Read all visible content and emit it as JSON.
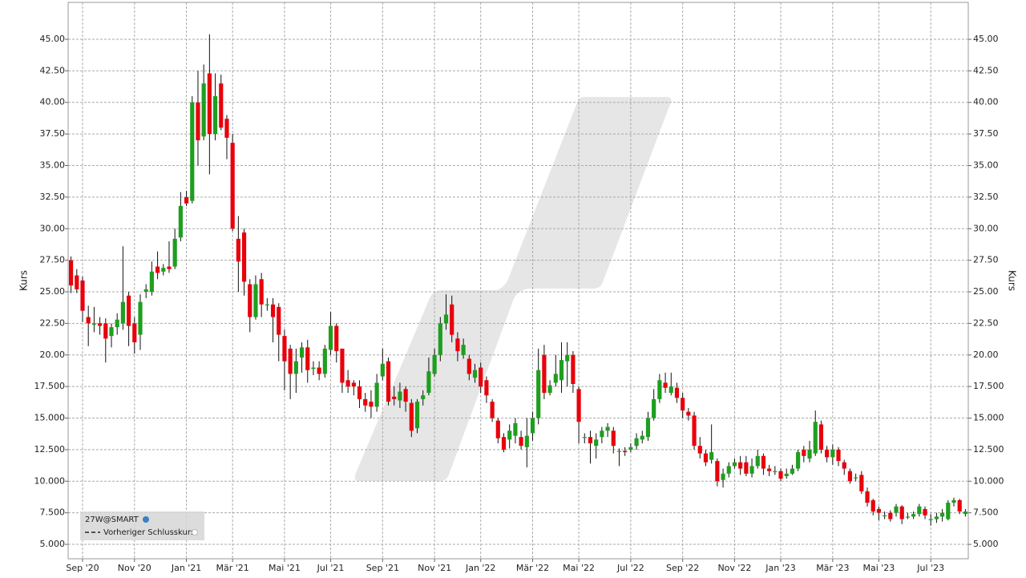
{
  "chart_data": {
    "type": "candlestick",
    "y_label": "Kurs",
    "legend": {
      "symbol": "27W@SMART",
      "previous_close": "Vorheriger Schlusskurs"
    },
    "up_color": "#1f9e1f",
    "down_color": "#e8000b",
    "grid": true,
    "ylim": [
      3.86,
      47.92
    ],
    "yticks": [
      {
        "value": 5,
        "label": "5.000"
      },
      {
        "value": 7.5,
        "label": "7.500"
      },
      {
        "value": 10,
        "label": "10.000"
      },
      {
        "value": 12.5,
        "label": "12.500"
      },
      {
        "value": 15,
        "label": "15.000"
      },
      {
        "value": 17.5,
        "label": "17.500"
      },
      {
        "value": 20,
        "label": "20.00"
      },
      {
        "value": 22.5,
        "label": "22.50"
      },
      {
        "value": 25,
        "label": "25.00"
      },
      {
        "value": 27.5,
        "label": "27.50"
      },
      {
        "value": 30,
        "label": "30.00"
      },
      {
        "value": 32.5,
        "label": "32.50"
      },
      {
        "value": 35,
        "label": "35.00"
      },
      {
        "value": 37.5,
        "label": "37.50"
      },
      {
        "value": 40,
        "label": "40.00"
      },
      {
        "value": 42.5,
        "label": "42.50"
      },
      {
        "value": 45,
        "label": "45.00"
      }
    ],
    "categories": [
      null,
      null,
      "Sep '20",
      null,
      null,
      null,
      null,
      null,
      null,
      null,
      null,
      "Nov '20",
      null,
      null,
      null,
      null,
      null,
      null,
      null,
      null,
      "Jan '21",
      null,
      null,
      null,
      null,
      null,
      null,
      null,
      "Mär '21",
      null,
      null,
      null,
      null,
      null,
      null,
      null,
      null,
      "Mai '21",
      null,
      null,
      null,
      null,
      null,
      null,
      null,
      "Jul '21",
      null,
      null,
      null,
      null,
      null,
      null,
      null,
      null,
      "Sep '21",
      null,
      null,
      null,
      null,
      null,
      null,
      null,
      null,
      "Nov '21",
      null,
      null,
      null,
      null,
      null,
      null,
      null,
      "Jan '22",
      null,
      null,
      null,
      null,
      null,
      null,
      null,
      null,
      "Mär '22",
      null,
      null,
      null,
      null,
      null,
      null,
      null,
      "Mai '22",
      null,
      null,
      null,
      null,
      null,
      null,
      null,
      null,
      "Jul '22",
      null,
      null,
      null,
      null,
      null,
      null,
      null,
      null,
      "Sep '22",
      null,
      null,
      null,
      null,
      null,
      null,
      null,
      null,
      "Nov '22",
      null,
      null,
      null,
      null,
      null,
      null,
      null,
      "Jan '23",
      null,
      null,
      null,
      null,
      null,
      null,
      null,
      null,
      "Mär '23",
      null,
      null,
      null,
      null,
      null,
      null,
      null,
      "Mai '23",
      null,
      null,
      null,
      null,
      null,
      null,
      null,
      null,
      "Jul '23",
      null,
      null,
      null,
      null,
      null,
      null
    ],
    "open": [
      27.5,
      26.3,
      25.9,
      23.0,
      22.4,
      22.5,
      22.5,
      21.5,
      22.2,
      22.5,
      24.7,
      22.5,
      21.6,
      25.0,
      25.0,
      27.0,
      26.6,
      27.0,
      27.0,
      29.3,
      32.5,
      32.2,
      40.0,
      37.3,
      42.3,
      37.5,
      41.5,
      38.7,
      36.8,
      29.2,
      29.7,
      25.6,
      23.0,
      26.0,
      24.0,
      24.0,
      23.8,
      21.5,
      20.5,
      18.5,
      19.8,
      20.6,
      18.9,
      19.0,
      18.5,
      20.4,
      22.3,
      20.5,
      18.0,
      17.8,
      17.5,
      16.5,
      16.3,
      15.9,
      18.3,
      19.5,
      16.7,
      16.4,
      17.3,
      16.2,
      14.2,
      16.5,
      17.0,
      18.5,
      20.0,
      22.5,
      24.0,
      21.3,
      20.0,
      19.7,
      18.2,
      19.0,
      18.0,
      16.3,
      14.8,
      13.5,
      13.3,
      13.6,
      13.5,
      12.7,
      13.8,
      15.0,
      20.0,
      17.0,
      17.8,
      18.0,
      19.5,
      20.0,
      17.3,
      13.5,
      13.5,
      12.8,
      13.5,
      14.0,
      14.0,
      12.4,
      12.4,
      12.5,
      12.8,
      13.3,
      13.5,
      15.0,
      16.5,
      17.8,
      17.0,
      17.4,
      16.6,
      15.5,
      15.2,
      12.8,
      12.2,
      11.7,
      11.6,
      10.1,
      10.6,
      11.2,
      11.5,
      11.5,
      10.6,
      11.2,
      12.0,
      11.0,
      10.8,
      10.8,
      10.4,
      10.6,
      11.0,
      12.5,
      11.8,
      12.2,
      14.5,
      12.5,
      11.9,
      12.5,
      11.5,
      10.8,
      10.3,
      10.5,
      9.2,
      8.5,
      7.8,
      7.3,
      7.5,
      7.5,
      8.0,
      7.2,
      7.2,
      7.4,
      7.8,
      7.0,
      7.0,
      7.2,
      7.0,
      8.3,
      8.5,
      7.4
    ],
    "high": [
      27.8,
      26.8,
      26.2,
      23.9,
      23.8,
      23.0,
      22.9,
      22.5,
      23.3,
      28.6,
      25.0,
      23.0,
      24.8,
      25.6,
      27.4,
      28.2,
      27.2,
      29.0,
      30.0,
      32.9,
      33.0,
      40.5,
      42.5,
      43.0,
      45.4,
      42.3,
      42.2,
      39.0,
      37.5,
      31.0,
      30.0,
      26.0,
      26.3,
      26.5,
      24.5,
      24.5,
      24.1,
      22.0,
      20.8,
      20.5,
      21.0,
      21.2,
      19.5,
      19.5,
      20.8,
      23.4,
      22.5,
      20.5,
      18.8,
      18.0,
      18.0,
      17.0,
      17.2,
      18.5,
      20.5,
      19.8,
      17.5,
      17.8,
      17.5,
      16.5,
      16.5,
      17.2,
      19.8,
      20.5,
      23.0,
      24.8,
      24.7,
      21.8,
      21.3,
      20.0,
      19.3,
      19.4,
      18.3,
      16.5,
      15.0,
      13.8,
      14.5,
      15.0,
      14.0,
      15.0,
      15.5,
      20.5,
      20.8,
      18.0,
      20.0,
      21.0,
      21.0,
      20.3,
      17.5,
      13.8,
      14.0,
      13.8,
      14.3,
      14.6,
      14.3,
      12.6,
      12.7,
      13.0,
      13.8,
      14.0,
      15.5,
      17.3,
      18.5,
      18.6,
      18.6,
      17.8,
      17.0,
      15.8,
      15.5,
      13.5,
      12.5,
      14.5,
      11.8,
      11.0,
      11.5,
      11.8,
      12.0,
      12.0,
      11.8,
      12.5,
      12.2,
      11.3,
      11.2,
      11.0,
      11.0,
      11.3,
      12.5,
      12.8,
      13.2,
      15.6,
      14.8,
      12.8,
      12.9,
      12.7,
      11.7,
      11.0,
      10.6,
      10.8,
      9.5,
      8.6,
      8.0,
      7.6,
      7.7,
      8.2,
      8.1,
      7.5,
      7.6,
      8.2,
      8.0,
      7.4,
      7.5,
      7.8,
      8.5,
      8.7,
      8.6,
      7.8
    ],
    "low": [
      24.9,
      24.9,
      22.6,
      20.7,
      21.8,
      21.6,
      19.4,
      20.6,
      21.6,
      22.0,
      20.7,
      20.1,
      20.4,
      24.5,
      24.7,
      26.0,
      26.3,
      26.5,
      26.8,
      29.0,
      31.8,
      32.0,
      35.0,
      37.0,
      34.3,
      37.0,
      37.8,
      35.5,
      29.8,
      25.0,
      24.7,
      21.8,
      22.8,
      23.0,
      23.5,
      21.0,
      19.5,
      17.2,
      16.5,
      17.0,
      18.6,
      17.8,
      18.4,
      18.0,
      18.2,
      20.0,
      19.4,
      17.0,
      17.0,
      16.8,
      15.8,
      15.5,
      15.0,
      15.5,
      18.0,
      16.0,
      16.0,
      15.8,
      15.5,
      13.5,
      13.8,
      16.0,
      16.8,
      18.3,
      19.5,
      22.0,
      21.0,
      19.5,
      19.7,
      18.0,
      17.8,
      17.0,
      16.2,
      14.7,
      13.0,
      12.3,
      12.6,
      13.0,
      12.5,
      11.1,
      13.2,
      14.5,
      16.5,
      16.8,
      17.5,
      17.0,
      17.5,
      17.0,
      13.0,
      13.0,
      11.4,
      11.8,
      13.0,
      13.5,
      12.2,
      11.2,
      12.0,
      12.3,
      12.5,
      13.0,
      13.2,
      14.8,
      16.2,
      17.0,
      16.8,
      16.2,
      15.0,
      14.8,
      12.5,
      11.8,
      11.2,
      11.4,
      9.6,
      9.5,
      10.3,
      11.0,
      10.5,
      10.4,
      10.3,
      11.0,
      10.5,
      10.4,
      10.5,
      10.0,
      10.2,
      10.5,
      10.8,
      11.5,
      11.5,
      12.0,
      12.2,
      11.5,
      11.3,
      11.2,
      10.5,
      9.8,
      10.0,
      9.0,
      8.0,
      7.3,
      6.9,
      7.0,
      6.8,
      7.2,
      6.6,
      7.0,
      7.0,
      7.2,
      7.0,
      6.5,
      6.7,
      6.8,
      6.9,
      8.0,
      7.4,
      7.2
    ],
    "close": [
      25.5,
      25.2,
      23.5,
      22.5,
      22.5,
      22.3,
      21.3,
      22.2,
      22.8,
      24.2,
      22.3,
      21.0,
      24.2,
      25.2,
      26.6,
      26.5,
      26.9,
      26.8,
      29.2,
      31.8,
      32.0,
      40.0,
      37.0,
      41.5,
      37.5,
      40.5,
      38.0,
      37.2,
      30.0,
      27.4,
      25.8,
      23.0,
      25.6,
      24.0,
      24.0,
      23.0,
      21.6,
      19.5,
      18.5,
      19.5,
      20.6,
      18.8,
      19.0,
      18.5,
      20.5,
      22.3,
      20.3,
      17.8,
      17.5,
      17.5,
      16.5,
      16.0,
      15.9,
      17.8,
      19.3,
      16.3,
      16.5,
      17.1,
      16.3,
      14.0,
      16.3,
      16.8,
      18.7,
      20.0,
      22.5,
      23.2,
      21.6,
      20.3,
      20.8,
      18.5,
      18.8,
      17.5,
      16.8,
      15.0,
      13.4,
      12.5,
      14.0,
      14.6,
      12.8,
      13.6,
      15.0,
      18.8,
      17.0,
      17.6,
      18.5,
      19.6,
      20.0,
      17.7,
      14.7,
      13.5,
      13.0,
      13.3,
      14.0,
      14.3,
      12.8,
      12.4,
      12.3,
      12.7,
      13.4,
      13.6,
      15.0,
      16.5,
      18.0,
      17.4,
      17.5,
      16.6,
      15.6,
      15.2,
      12.8,
      12.2,
      11.5,
      12.3,
      10.0,
      10.6,
      11.2,
      11.5,
      11.0,
      10.6,
      11.2,
      12.0,
      11.0,
      10.8,
      10.8,
      10.2,
      10.6,
      11.0,
      12.3,
      12.0,
      12.5,
      14.7,
      12.5,
      11.9,
      12.5,
      11.6,
      11.0,
      10.0,
      10.3,
      9.2,
      8.3,
      7.6,
      7.5,
      7.3,
      7.0,
      8.0,
      7.0,
      7.2,
      7.4,
      8.0,
      7.3,
      7.0,
      7.2,
      7.5,
      8.3,
      8.5,
      7.6,
      7.6
    ]
  }
}
